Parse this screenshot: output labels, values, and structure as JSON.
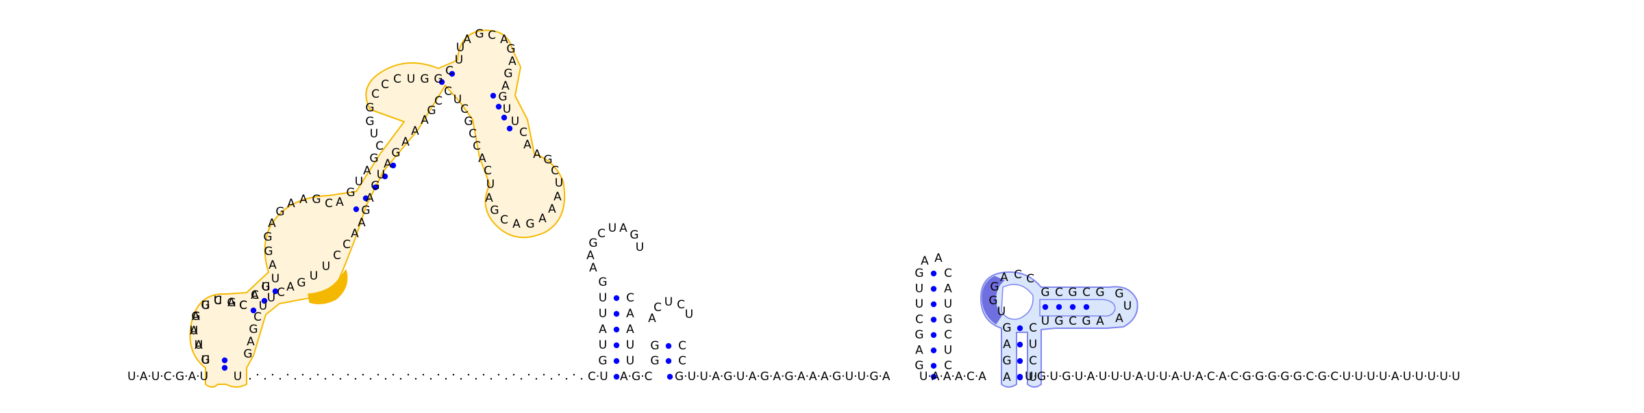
{
  "colors": {
    "background": "#ffffff",
    "text": "#000000",
    "bond": "#0000ff",
    "orange_outline": "#f5b800",
    "orange_fill": "#fff4da",
    "orange_highlight": "#f5b800",
    "blue_outline": "#7f86ee",
    "blue_fill": "#d9e6fb",
    "blue_highlight": "#6f6fe0"
  },
  "baseline": {
    "left": "U·A·U·C·G·A·U",
    "left_end": "U",
    "gap_seq": "C·U",
    "mid1": "A·G·C",
    "mid2": "G·U·U·A·G·U·A·G·A·G·A·A·A·G·U·U·G·A",
    "mid3": "U·A·A·A·C·A",
    "right": "U·G·U·G·U·A·U·U·U·A·U·U·A·U·A·C·A·C·G·G·G·G·G·C·G·C·U·U·U·U·A·U·U·U·U·U"
  },
  "helix1": {
    "labels": [
      "G",
      "A",
      "U",
      "A",
      "U",
      "U",
      "G",
      "C",
      "A",
      "G",
      "U",
      "A",
      "G",
      "G",
      "A",
      "G",
      "A",
      "A",
      "G",
      "C",
      "A",
      "G",
      "U",
      "A",
      "G",
      "C",
      "U",
      "G",
      "G",
      "C",
      "C",
      "C",
      "U",
      "G",
      "G",
      "C",
      "U",
      "U",
      "A",
      "G",
      "C",
      "A",
      "G",
      "A",
      "G",
      "A",
      "G",
      "U",
      "U",
      "C",
      "A",
      "A",
      "G",
      "C",
      "U",
      "A",
      "A",
      "A",
      "G",
      "A",
      "C",
      "G",
      "A",
      "U",
      "C",
      "A",
      "C",
      "C",
      "G",
      "C",
      "U",
      "C",
      "C",
      "G",
      "A",
      "A",
      "A",
      "G",
      "A",
      "U",
      "G",
      "A",
      "G",
      "A",
      "A",
      "C",
      "C",
      "U",
      "U",
      "G",
      "A",
      "C",
      "U",
      "U",
      "C",
      "G",
      "A",
      "G",
      "U",
      "U",
      "A",
      "G",
      "G",
      "C",
      "A",
      "C",
      "C",
      "U"
    ]
  },
  "hairpin2": {
    "stem_left": [
      "G",
      "U",
      "A",
      "U",
      "U",
      "G"
    ],
    "stem_right": [
      "U",
      "U",
      "A",
      "A",
      "C"
    ],
    "loop": [
      "A",
      "A",
      "G",
      "C",
      "U",
      "A",
      "G",
      "U"
    ]
  },
  "hairpin3": {
    "stem_left": [
      "G",
      "G"
    ],
    "stem_right": [
      "C",
      "C"
    ],
    "loop": [
      "A",
      "C",
      "U",
      "C",
      "U"
    ]
  },
  "hairpin4": {
    "stem_left": [
      "G",
      "U",
      "U",
      "C",
      "G",
      "A",
      "G"
    ],
    "stem_right": [
      "C",
      "A",
      "U",
      "G",
      "C",
      "U",
      "C"
    ],
    "loop": [
      "A",
      "A"
    ]
  },
  "helix5": {
    "stem_left": [
      "G",
      "A",
      "G",
      "A"
    ],
    "stem_right": [
      "C",
      "U",
      "C",
      "U"
    ],
    "top_loop": [
      "U",
      "G",
      "G",
      "A",
      "C",
      "C"
    ],
    "arm_top": [
      "G",
      "C",
      "G",
      "C",
      "G"
    ],
    "arm_bottom": [
      "U",
      "G",
      "C",
      "G",
      "A"
    ],
    "arm_end": [
      "G",
      "U",
      "A"
    ]
  }
}
